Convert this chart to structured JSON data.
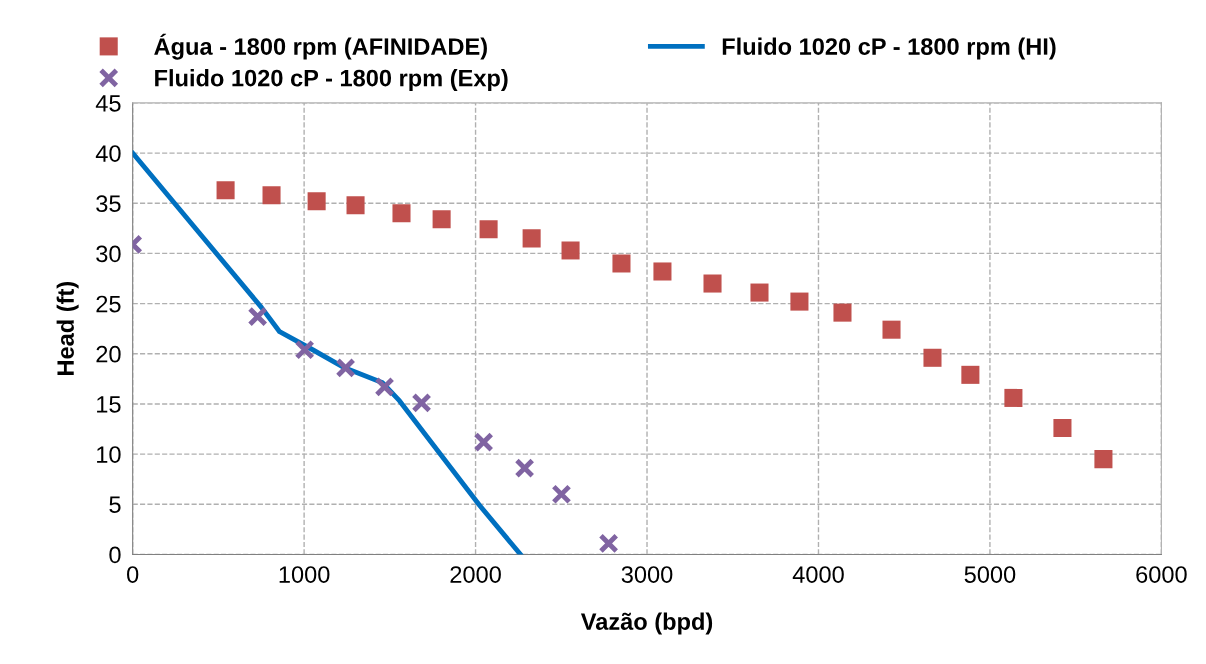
{
  "chart_data": {
    "type": "scatter",
    "xlabel": "Vazão (bpd)",
    "ylabel": "Head (ft)",
    "xlim": [
      0,
      6000
    ],
    "ylim": [
      0,
      45
    ],
    "xticks": [
      0,
      1000,
      2000,
      3000,
      4000,
      5000,
      6000
    ],
    "yticks": [
      0,
      5,
      10,
      15,
      20,
      25,
      30,
      35,
      40,
      45
    ],
    "grid": true,
    "legend": "top",
    "series": [
      {
        "name": "Água - 1800 rpm (AFINIDADE)",
        "marker": "square",
        "color": "#c0504d",
        "x": [
          542,
          810,
          1073,
          1300,
          1568,
          1802,
          2076,
          2327,
          2554,
          2851,
          3090,
          3382,
          3656,
          3889,
          4140,
          4426,
          4665,
          4886,
          5137,
          5423,
          5662
        ],
        "values": [
          36.3,
          35.8,
          35.2,
          34.8,
          34.0,
          33.4,
          32.4,
          31.5,
          30.3,
          29.0,
          28.2,
          27.0,
          26.1,
          25.2,
          24.1,
          22.4,
          19.6,
          17.9,
          15.6,
          12.6,
          9.5
        ]
      },
      {
        "name": "Fluido 1020 cP - 1800 rpm (HI)",
        "type": "line",
        "marker": "none",
        "color": "#0070c0",
        "x": [
          0,
          752,
          857,
          1050,
          1236,
          1458,
          1557,
          2023,
          2262
        ],
        "values": [
          40,
          24.6,
          22.2,
          20.4,
          18.6,
          17.1,
          15.3,
          4.9,
          0
        ]
      },
      {
        "name": "Fluido 1020 cP - 1800 rpm (Exp)",
        "marker": "cross",
        "color": "#8064a2",
        "x": [
          0,
          729,
          1003,
          1242,
          1469,
          1685,
          2047,
          2286,
          2501,
          2776
        ],
        "values": [
          30.9,
          23.7,
          20.4,
          18.6,
          16.7,
          15.1,
          11.2,
          8.6,
          6.0,
          1.1
        ]
      }
    ]
  }
}
